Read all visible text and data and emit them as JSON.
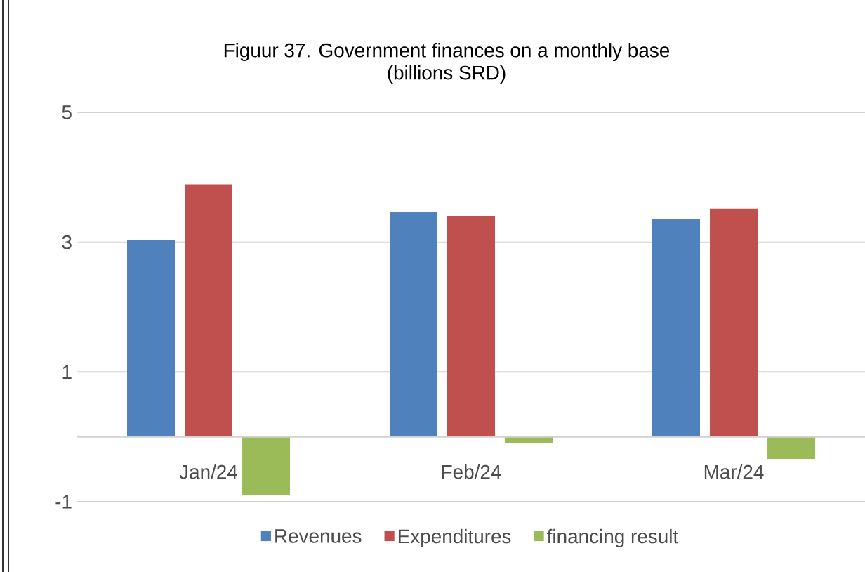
{
  "chart_data": {
    "type": "bar",
    "title": "Figuur 37. Government finances on a monthly base",
    "subtitle": "(billions SRD)",
    "categories": [
      "Jan/24",
      "Feb/24",
      "Mar/24"
    ],
    "series": [
      {
        "name": "Revenues",
        "color": "#4f81bd",
        "values": [
          3.03,
          3.47,
          3.36
        ]
      },
      {
        "name": "Expenditures",
        "color": "#c0504d",
        "values": [
          3.89,
          3.4,
          3.52
        ]
      },
      {
        "name": "financing result",
        "color": "#9bbb59",
        "values": [
          -0.9,
          -0.09,
          -0.34
        ]
      }
    ],
    "ylim": [
      -1,
      5
    ],
    "yticks": [
      -1,
      1,
      3,
      5
    ],
    "grid": "y",
    "legend": "bottom"
  }
}
